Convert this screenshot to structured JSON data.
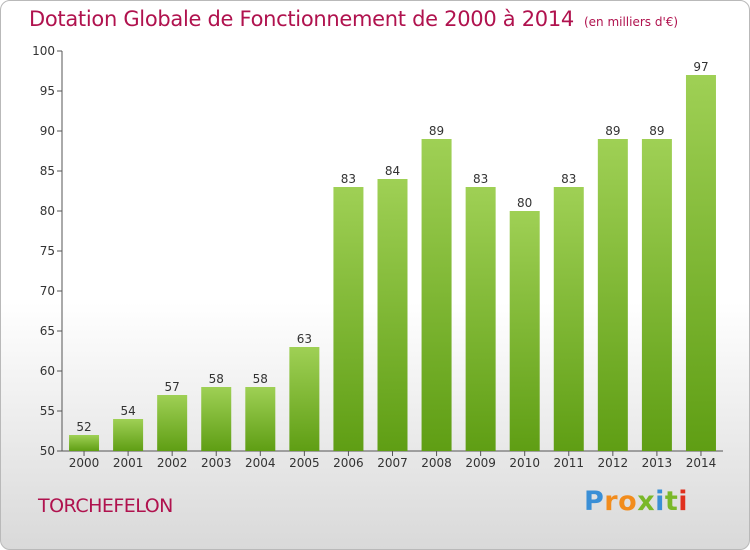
{
  "header": {
    "title": "Dotation Globale de Fonctionnement de 2000 à 2014",
    "unit": "(en milliers d'€)"
  },
  "footer": {
    "commune": "TORCHEFELON",
    "brand": "Proxiti"
  },
  "colors": {
    "title": "#b0124e",
    "bar_top": "#9fd055",
    "bar_bottom": "#5f9e14",
    "brand_letters": [
      "#3a8fd6",
      "#f28c1c",
      "#f28c1c",
      "#7ab829",
      "#3a8fd6",
      "#7ab829",
      "#e0301e"
    ]
  },
  "chart_data": {
    "type": "bar",
    "categories": [
      "2000",
      "2001",
      "2002",
      "2003",
      "2004",
      "2005",
      "2006",
      "2007",
      "2008",
      "2009",
      "2010",
      "2011",
      "2012",
      "2013",
      "2014"
    ],
    "values": [
      52,
      54,
      57,
      58,
      58,
      63,
      83,
      84,
      89,
      83,
      80,
      83,
      89,
      89,
      97
    ],
    "ylim": [
      50,
      100
    ],
    "yticks": [
      50,
      55,
      60,
      65,
      70,
      75,
      80,
      85,
      90,
      95,
      100
    ],
    "grid": false,
    "data_labels": true
  }
}
